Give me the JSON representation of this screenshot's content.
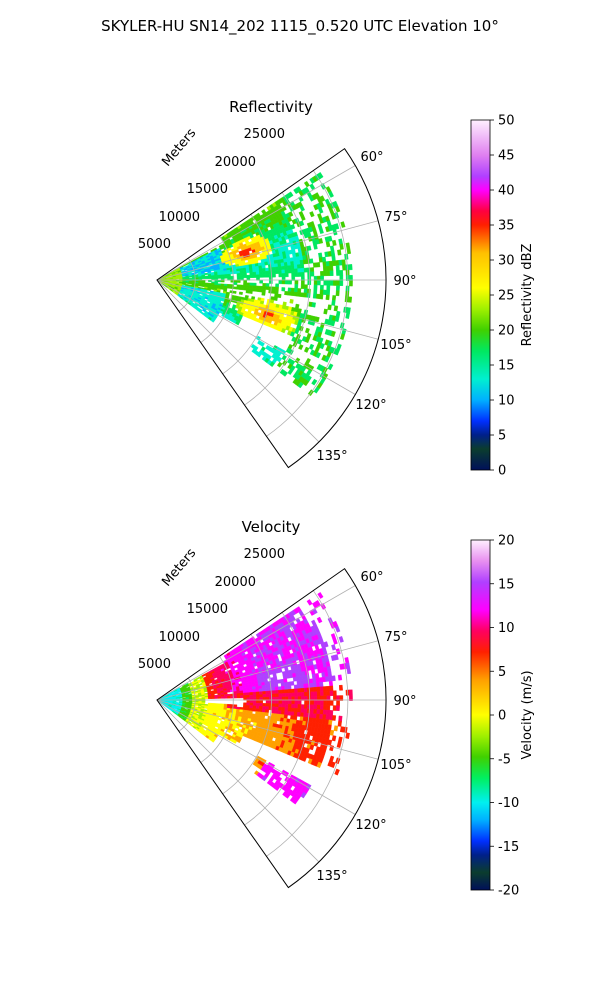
{
  "figure": {
    "suptitle": "SKYLER-HU  SN14_202  1115_0.520 UTC Elevation 10°"
  },
  "chart_data": [
    {
      "type": "heatmap",
      "projection": "polar-sector",
      "title": "Reflectivity",
      "radial_label": "Meters",
      "radial_ticks": [
        "5000",
        "10000",
        "15000",
        "20000",
        "25000"
      ],
      "radial_values": [
        5000,
        10000,
        15000,
        20000,
        25000
      ],
      "rlim": [
        0,
        30000
      ],
      "azimuth_ticks": [
        "60°",
        "75°",
        "90°",
        "105°",
        "120°",
        "135°"
      ],
      "azimuth_values": [
        60,
        75,
        90,
        105,
        120,
        135
      ],
      "azimuth_range": [
        55,
        145
      ],
      "grid": true,
      "colorbar": {
        "label": "Reflectivity dBZ",
        "min": 0,
        "max": 50,
        "ticks": [
          "0",
          "5",
          "10",
          "15",
          "20",
          "25",
          "30",
          "35",
          "40",
          "45",
          "50"
        ],
        "tick_values": [
          0,
          5,
          10,
          15,
          20,
          25,
          30,
          35,
          40,
          45,
          50
        ]
      }
    },
    {
      "type": "heatmap",
      "projection": "polar-sector",
      "title": "Velocity",
      "radial_label": "Meters",
      "radial_ticks": [
        "5000",
        "10000",
        "15000",
        "20000",
        "25000"
      ],
      "radial_values": [
        5000,
        10000,
        15000,
        20000,
        25000
      ],
      "rlim": [
        0,
        30000
      ],
      "azimuth_ticks": [
        "60°",
        "75°",
        "90°",
        "105°",
        "120°",
        "135°"
      ],
      "azimuth_values": [
        60,
        75,
        90,
        105,
        120,
        135
      ],
      "azimuth_range": [
        55,
        145
      ],
      "grid": true,
      "colorbar": {
        "label": "Velocity (m/s)",
        "min": -20,
        "max": 20,
        "ticks": [
          "-20",
          "-15",
          "-10",
          "-5",
          "0",
          "5",
          "10",
          "15",
          "20"
        ],
        "tick_values": [
          -20,
          -15,
          -10,
          -5,
          0,
          5,
          10,
          15,
          20
        ]
      }
    }
  ]
}
